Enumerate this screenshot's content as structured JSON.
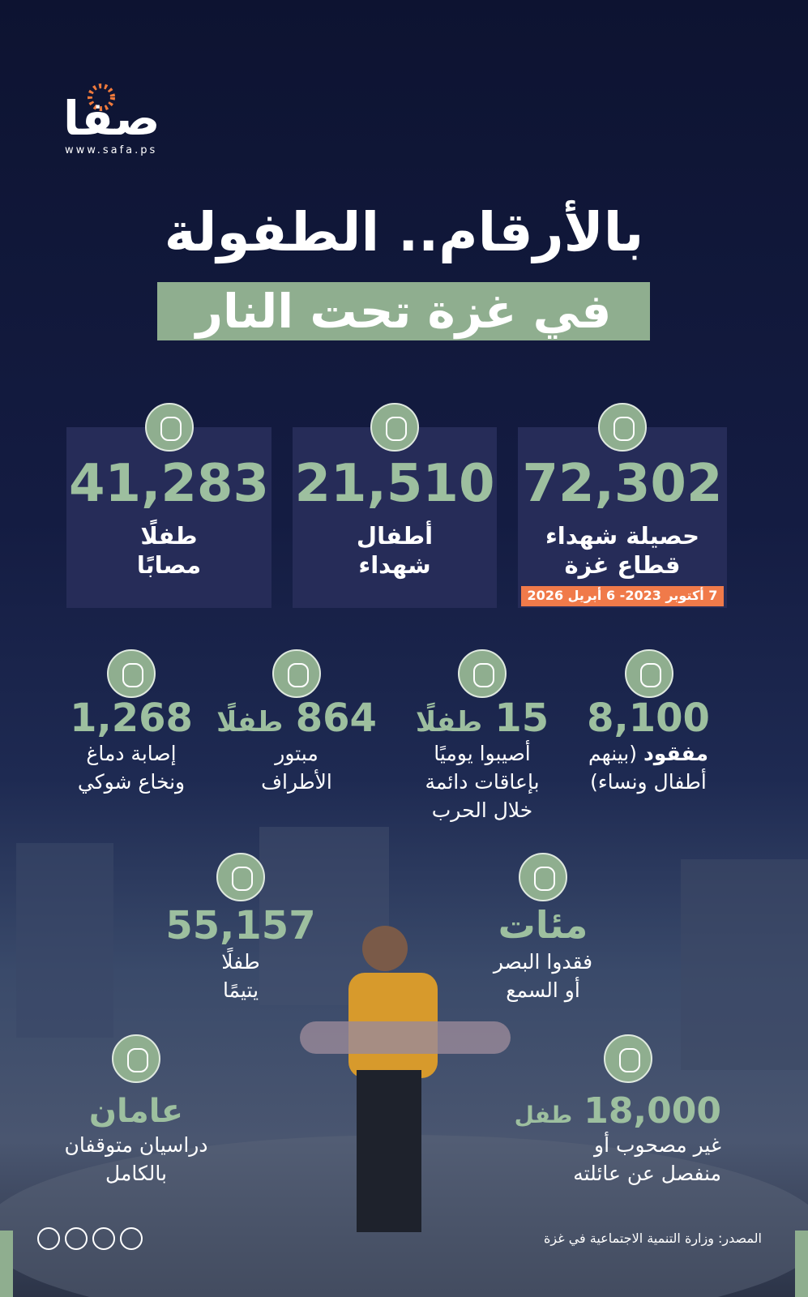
{
  "logo": {
    "name": "صفا",
    "url": "www.safa.ps"
  },
  "title": {
    "line1": "بالأرقام.. الطفولة",
    "line2": "في غزة تحت النار"
  },
  "cards": [
    {
      "number": "72,302",
      "line1": "حصيلة شهداء",
      "line2": "قطاع غزة",
      "date": "7 أكتوبر 2023- 6 أبريل 2026"
    },
    {
      "number": "21,510",
      "line1": "أطفال",
      "line2": "شهداء"
    },
    {
      "number": "41,283",
      "line1": "طفلًا",
      "line2": "مصابًا"
    }
  ],
  "stats": [
    {
      "number": "8,100",
      "strong": "مفقود",
      "text": "(بينهم",
      "text2": "أطفال ونساء)"
    },
    {
      "number": "15",
      "unit": "طفلًا",
      "text": "أصيبوا يوميًا",
      "text2": "بإعاقات دائمة",
      "text3": "خلال الحرب"
    },
    {
      "number": "864",
      "unit": "طفلًا",
      "text": "مبتور",
      "text2": "الأطراف"
    },
    {
      "number": "1,268",
      "text": "إصابة دماغ",
      "text2": "ونخاع شوكي"
    },
    {
      "number": "مئات",
      "text": "فقدوا البصر",
      "text2": "أو السمع"
    },
    {
      "number": "55,157",
      "text": "طفلًا",
      "text2": "يتيمًا"
    },
    {
      "number": "18,000",
      "unit": "طفل",
      "text": "غير مصحوب أو",
      "text2": "منفصل عن عائلته"
    },
    {
      "number": "عامان",
      "text": "دراسيان متوقفان",
      "text2": "بالكامل"
    }
  ],
  "source": "المصدر: وزارة التنمية الاجتماعية في غزة"
}
